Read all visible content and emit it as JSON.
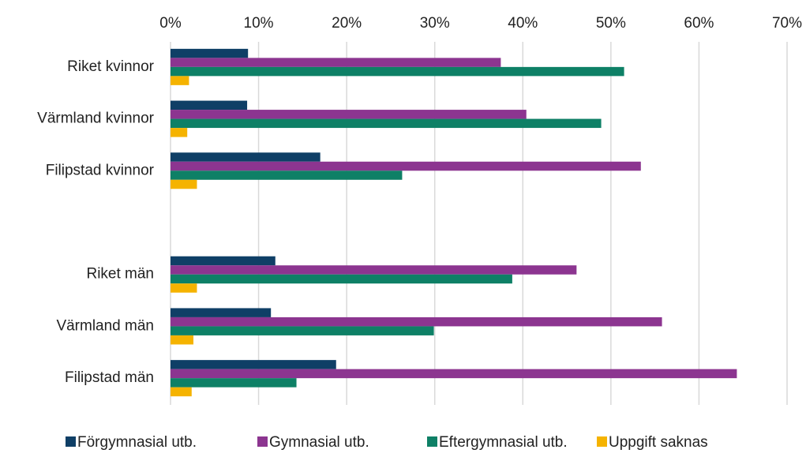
{
  "chart_data": {
    "type": "hbar",
    "categories": [
      "Riket kvinnor",
      "Värmland kvinnor",
      "Filipstad kvinnor",
      null,
      "Riket män",
      "Värmland män",
      "Filipstad män"
    ],
    "series": [
      {
        "name": "Förgymnasial utb.",
        "color": "#0f3f66",
        "values": [
          8.8,
          8.7,
          17.0,
          null,
          11.9,
          11.4,
          18.8
        ]
      },
      {
        "name": "Gymnasial utb.",
        "color": "#8c3590",
        "values": [
          37.5,
          40.4,
          53.4,
          null,
          46.1,
          55.8,
          64.3
        ]
      },
      {
        "name": "Eftergymnasial utb.",
        "color": "#0e8066",
        "values": [
          51.5,
          48.9,
          26.3,
          null,
          38.8,
          29.9,
          14.3
        ]
      },
      {
        "name": "Uppgift saknas",
        "color": "#f5b300",
        "values": [
          2.1,
          1.9,
          3.0,
          null,
          3.0,
          2.6,
          2.4
        ]
      }
    ],
    "xlim": [
      0,
      70
    ],
    "xticks": [
      {
        "value": 0,
        "label": "0%"
      },
      {
        "value": 10,
        "label": "10%"
      },
      {
        "value": 20,
        "label": "20%"
      },
      {
        "value": 30,
        "label": "30%"
      },
      {
        "value": 40,
        "label": "40%"
      },
      {
        "value": 50,
        "label": "50%"
      },
      {
        "value": 60,
        "label": "60%"
      },
      {
        "value": 70,
        "label": "70%"
      }
    ],
    "grid": true,
    "legend": "bottom"
  }
}
